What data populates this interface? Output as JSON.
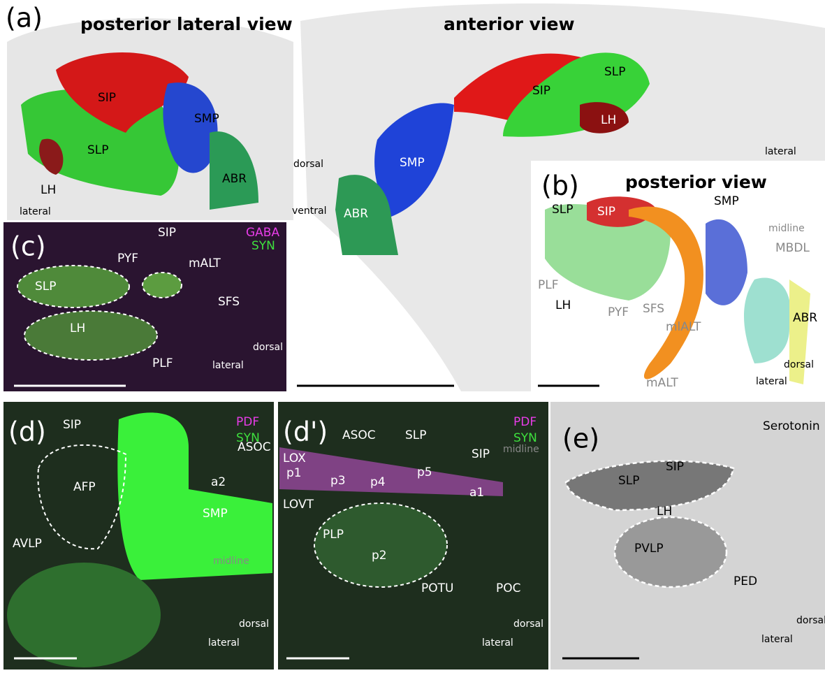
{
  "panel_a": {
    "label": "(a)",
    "left_title": "posterior lateral view",
    "right_title": "anterior view",
    "left_labels": [
      "SIP",
      "SMP",
      "SLP",
      "LH",
      "ABR"
    ],
    "left_direction": "lateral",
    "right_labels": [
      "SIP",
      "SLP",
      "LH",
      "SMP",
      "ABR"
    ],
    "right_direction": "lateral",
    "axis": [
      "dorsal",
      "ventral"
    ]
  },
  "panel_b": {
    "label": "(b)",
    "title": "posterior view",
    "labels": [
      "SLP",
      "SIP",
      "SMP",
      "LH",
      "ABR"
    ],
    "gray_labels": [
      "midline",
      "MBDL",
      "PLF",
      "PYF",
      "SFS",
      "mlALT",
      "mALT"
    ],
    "axis": [
      "dorsal",
      "lateral"
    ]
  },
  "panel_c": {
    "label": "(c)",
    "stains": [
      "GABA",
      "SYN"
    ],
    "labels": [
      "SIP",
      "PYF",
      "mALT",
      "SLP",
      "SFS",
      "LH",
      "PLF"
    ],
    "axis": [
      "dorsal",
      "lateral"
    ]
  },
  "panel_d": {
    "label": "(d)",
    "stains": [
      "PDF",
      "SYN"
    ],
    "labels": [
      "SIP",
      "ASOC",
      "AFP",
      "a2",
      "SMP",
      "AVLP"
    ],
    "midline": "midline",
    "axis": [
      "dorsal",
      "lateral"
    ]
  },
  "panel_d2": {
    "label": "(d')",
    "stains": [
      "PDF",
      "SYN"
    ],
    "labels": [
      "ASOC",
      "SLP",
      "LOX",
      "p1",
      "p3",
      "p4",
      "p5",
      "SIP",
      "a1",
      "LOVT",
      "PLP",
      "p2",
      "POTU",
      "POC"
    ],
    "midline": "midline",
    "axis": [
      "dorsal",
      "lateral"
    ]
  },
  "panel_e": {
    "label": "(e)",
    "stain": "Serotonin",
    "labels": [
      "SIP",
      "SLP",
      "LH",
      "PVLP",
      "PED"
    ],
    "axis": [
      "dorsal",
      "lateral"
    ]
  }
}
